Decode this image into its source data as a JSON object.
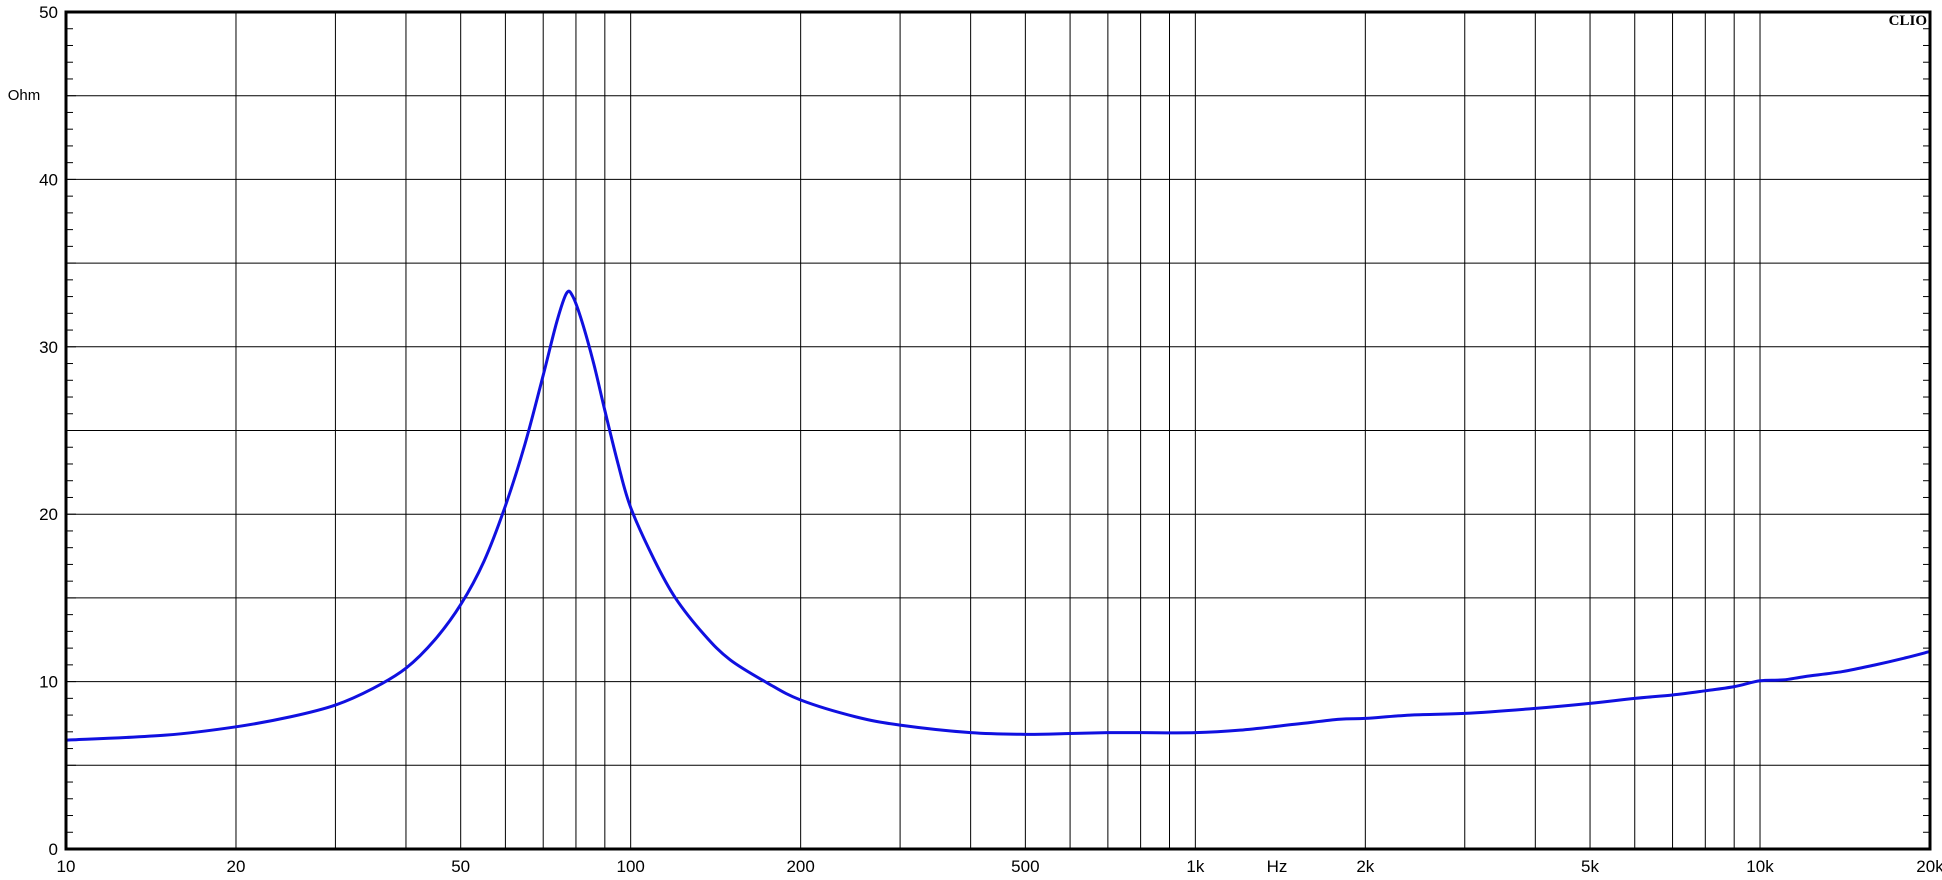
{
  "chart_data": {
    "type": "line",
    "brand": "CLIO",
    "xlabel": "Hz",
    "ylabel": "Ohm",
    "xscale": "log",
    "xlim": [
      10,
      20000
    ],
    "ylim": [
      0,
      50
    ],
    "grid": true,
    "x_ticks": [
      {
        "value": 10,
        "label": "10"
      },
      {
        "value": 20,
        "label": "20"
      },
      {
        "value": 50,
        "label": "50"
      },
      {
        "value": 100,
        "label": "100"
      },
      {
        "value": 200,
        "label": "200"
      },
      {
        "value": 500,
        "label": "500"
      },
      {
        "value": 1000,
        "label": "1k"
      },
      {
        "value": 2000,
        "label": "2k"
      },
      {
        "value": 5000,
        "label": "5k"
      },
      {
        "value": 10000,
        "label": "10k"
      },
      {
        "value": 20000,
        "label": "20k"
      }
    ],
    "y_ticks": [
      {
        "value": 0,
        "label": "0"
      },
      {
        "value": 10,
        "label": "10"
      },
      {
        "value": 20,
        "label": "20"
      },
      {
        "value": 30,
        "label": "30"
      },
      {
        "value": 40,
        "label": "40"
      },
      {
        "value": 50,
        "label": "50"
      }
    ],
    "series": [
      {
        "color": "#1010e0",
        "points": [
          [
            10,
            6.5
          ],
          [
            15,
            6.8
          ],
          [
            20,
            7.3
          ],
          [
            25,
            7.9
          ],
          [
            30,
            8.6
          ],
          [
            35,
            9.6
          ],
          [
            40,
            10.8
          ],
          [
            45,
            12.5
          ],
          [
            50,
            14.6
          ],
          [
            55,
            17.2
          ],
          [
            60,
            20.5
          ],
          [
            65,
            24.2
          ],
          [
            70,
            28.3
          ],
          [
            74,
            31.5
          ],
          [
            77,
            33.2
          ],
          [
            79,
            33.0
          ],
          [
            82,
            31.5
          ],
          [
            86,
            29.0
          ],
          [
            90,
            26.2
          ],
          [
            95,
            23.0
          ],
          [
            100,
            20.4
          ],
          [
            110,
            17.3
          ],
          [
            120,
            15.0
          ],
          [
            135,
            12.8
          ],
          [
            150,
            11.3
          ],
          [
            175,
            9.9
          ],
          [
            200,
            8.9
          ],
          [
            250,
            7.9
          ],
          [
            300,
            7.4
          ],
          [
            400,
            6.95
          ],
          [
            500,
            6.85
          ],
          [
            600,
            6.9
          ],
          [
            700,
            6.95
          ],
          [
            800,
            6.95
          ],
          [
            1000,
            6.95
          ],
          [
            1200,
            7.1
          ],
          [
            1500,
            7.45
          ],
          [
            1800,
            7.75
          ],
          [
            2000,
            7.8
          ],
          [
            2400,
            8.0
          ],
          [
            3000,
            8.1
          ],
          [
            4000,
            8.4
          ],
          [
            5000,
            8.7
          ],
          [
            6000,
            9.0
          ],
          [
            7000,
            9.2
          ],
          [
            8000,
            9.45
          ],
          [
            9000,
            9.7
          ],
          [
            10000,
            10.05
          ],
          [
            11000,
            10.1
          ],
          [
            12000,
            10.3
          ],
          [
            14000,
            10.6
          ],
          [
            16000,
            11.0
          ],
          [
            18000,
            11.4
          ],
          [
            20000,
            11.8
          ]
        ]
      }
    ]
  }
}
